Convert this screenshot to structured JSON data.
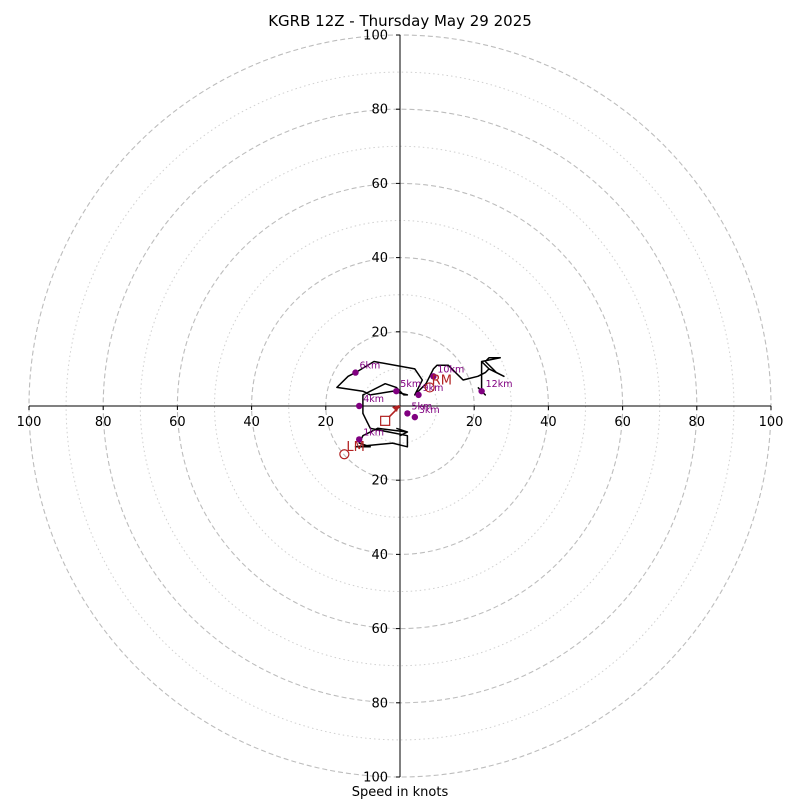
{
  "chart_data": {
    "type": "hodograph",
    "title": "KGRB 12Z - Thursday May 29 2025",
    "xlabel": "Speed in knots",
    "range": [
      -100,
      100
    ],
    "rings": {
      "major": [
        20,
        40,
        60,
        80,
        100
      ],
      "minor": [
        10,
        30,
        50,
        70,
        90
      ]
    },
    "tick_labels": {
      "x": [
        "100",
        "80",
        "60",
        "40",
        "20",
        "20",
        "40",
        "60",
        "80",
        "100"
      ],
      "x_values": [
        -100,
        -80,
        -60,
        -40,
        -20,
        20,
        40,
        60,
        80,
        100
      ],
      "y": [
        "100",
        "80",
        "60",
        "40",
        "20",
        "20",
        "40",
        "60",
        "80",
        "100"
      ],
      "y_values": [
        100,
        80,
        60,
        40,
        20,
        -20,
        -40,
        -60,
        -80,
        -100
      ]
    },
    "grid": true,
    "colors": {
      "trace": "#000000",
      "height_points": "#800080",
      "markers": "#b22222",
      "rings": "#bdbdbd",
      "axes": "#000000"
    },
    "trace": [
      [
        -1,
        -6
      ],
      [
        2,
        -7
      ],
      [
        0,
        -8
      ],
      [
        2,
        -7
      ],
      [
        -6,
        -6
      ],
      [
        -10,
        -8
      ],
      [
        -11,
        -10
      ],
      [
        -8,
        -11
      ],
      [
        -12,
        -11
      ],
      [
        -2,
        -10
      ],
      [
        2,
        -11
      ],
      [
        2,
        -8
      ],
      [
        -8,
        -6
      ],
      [
        -10,
        -2
      ],
      [
        -10,
        3
      ],
      [
        -4,
        6
      ],
      [
        -1,
        5
      ],
      [
        0,
        4
      ],
      [
        1,
        3
      ],
      [
        2,
        3
      ],
      [
        -2,
        4
      ],
      [
        -8,
        3
      ],
      [
        -10,
        4
      ],
      [
        -17,
        5
      ],
      [
        -14,
        8
      ],
      [
        -12,
        9
      ],
      [
        -7,
        12
      ],
      [
        4,
        10
      ],
      [
        6,
        7
      ],
      [
        5,
        5
      ],
      [
        4,
        3
      ],
      [
        7,
        6
      ],
      [
        8,
        8
      ],
      [
        9,
        10
      ],
      [
        10,
        11
      ],
      [
        13,
        11
      ],
      [
        15,
        9
      ],
      [
        16,
        8
      ],
      [
        17,
        7
      ],
      [
        21,
        8
      ],
      [
        23,
        9
      ],
      [
        24,
        10
      ],
      [
        22,
        12
      ],
      [
        27,
        13
      ],
      [
        24,
        13
      ],
      [
        23,
        12
      ],
      [
        25,
        10
      ],
      [
        26,
        9
      ],
      [
        28,
        8
      ],
      [
        24,
        10
      ],
      [
        22,
        12
      ],
      [
        22,
        5
      ],
      [
        22,
        4
      ],
      [
        23,
        3
      ],
      [
        22,
        4
      ],
      [
        21,
        5
      ]
    ],
    "height_points": [
      {
        "label": "1km",
        "u": -11,
        "v": -9
      },
      {
        "label": "3km",
        "u": 4,
        "v": -3
      },
      {
        "label": "4km",
        "u": -11,
        "v": 0
      },
      {
        "label": "5km",
        "u": -1,
        "v": 4
      },
      {
        "label": "6km",
        "u": -12,
        "v": 9
      },
      {
        "label": "9km",
        "u": 5,
        "v": 3
      },
      {
        "label": "10km",
        "u": 9,
        "v": 8
      },
      {
        "label": "12km",
        "u": 22,
        "v": 4
      },
      {
        "label": "5km",
        "u": 2,
        "v": -2
      }
    ],
    "markers": [
      {
        "label": "LM",
        "symbol": "circle",
        "u": -15,
        "v": -13
      },
      {
        "label": "RM",
        "symbol": "circle",
        "u": 8,
        "v": 5
      },
      {
        "label": "",
        "symbol": "square",
        "u": -4,
        "v": -4
      },
      {
        "label": "",
        "symbol": "arrow",
        "u": -3,
        "v": -3
      }
    ]
  }
}
